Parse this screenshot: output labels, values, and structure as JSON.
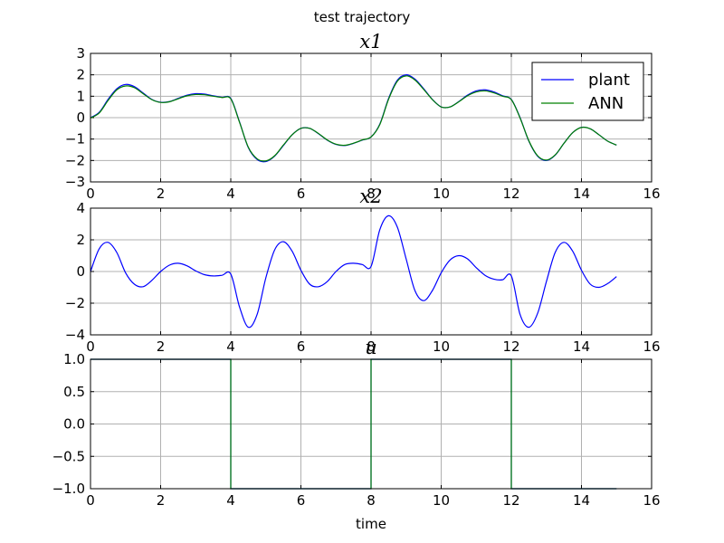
{
  "figure_title": "test trajectory",
  "colors": {
    "plant": "#0000ff",
    "ann": "#008000",
    "grid": "#b0b0b0"
  },
  "chart_data": [
    {
      "type": "line",
      "title": "x1",
      "xlabel": "",
      "ylabel": "",
      "xlim": [
        0,
        16
      ],
      "ylim": [
        -3,
        3
      ],
      "xticks": [
        "0",
        "2",
        "4",
        "6",
        "8",
        "10",
        "12",
        "14",
        "16"
      ],
      "yticks": [
        "−3",
        "−2",
        "−1",
        "0",
        "1",
        "2",
        "3"
      ],
      "grid": true,
      "legend": "top-right",
      "series": [
        {
          "name": "plant",
          "x": [
            0,
            0.25,
            0.5,
            0.75,
            1.0,
            1.25,
            1.5,
            1.75,
            2.0,
            2.25,
            2.5,
            2.75,
            3.0,
            3.25,
            3.5,
            3.75,
            4.0,
            4.25,
            4.5,
            4.75,
            5.0,
            5.25,
            5.5,
            5.75,
            6.0,
            6.25,
            6.5,
            6.75,
            7.0,
            7.25,
            7.5,
            7.75,
            8.0,
            8.25,
            8.5,
            8.75,
            9.0,
            9.25,
            9.5,
            9.75,
            10.0,
            10.25,
            10.5,
            10.75,
            11.0,
            11.25,
            11.5,
            11.75,
            12.0,
            12.25,
            12.5,
            12.75,
            13.0,
            13.25,
            13.5,
            13.75,
            14.0,
            14.25,
            14.5,
            14.75,
            15.0
          ],
          "y": [
            0.0,
            0.25,
            0.85,
            1.35,
            1.55,
            1.45,
            1.15,
            0.85,
            0.72,
            0.75,
            0.9,
            1.05,
            1.12,
            1.1,
            1.02,
            0.95,
            0.9,
            -0.2,
            -1.4,
            -1.95,
            -2.05,
            -1.8,
            -1.3,
            -0.8,
            -0.5,
            -0.5,
            -0.75,
            -1.05,
            -1.25,
            -1.3,
            -1.2,
            -1.05,
            -0.9,
            -0.3,
            0.9,
            1.75,
            2.0,
            1.8,
            1.35,
            0.85,
            0.5,
            0.5,
            0.75,
            1.05,
            1.25,
            1.3,
            1.2,
            1.02,
            0.85,
            0.0,
            -1.1,
            -1.8,
            -2.0,
            -1.75,
            -1.2,
            -0.7,
            -0.45,
            -0.52,
            -0.8,
            -1.1,
            -1.28
          ]
        },
        {
          "name": "ANN",
          "x": [
            0,
            0.25,
            0.5,
            0.75,
            1.0,
            1.25,
            1.5,
            1.75,
            2.0,
            2.25,
            2.5,
            2.75,
            3.0,
            3.25,
            3.5,
            3.75,
            4.0,
            4.25,
            4.5,
            4.75,
            5.0,
            5.25,
            5.5,
            5.75,
            6.0,
            6.25,
            6.5,
            6.75,
            7.0,
            7.25,
            7.5,
            7.75,
            8.0,
            8.25,
            8.5,
            8.75,
            9.0,
            9.25,
            9.5,
            9.75,
            10.0,
            10.25,
            10.5,
            10.75,
            11.0,
            11.25,
            11.5,
            11.75,
            12.0,
            12.25,
            12.5,
            12.75,
            13.0,
            13.25,
            13.5,
            13.75,
            14.0,
            14.25,
            14.5,
            14.75,
            15.0
          ],
          "y": [
            -0.02,
            0.22,
            0.8,
            1.3,
            1.48,
            1.4,
            1.12,
            0.84,
            0.71,
            0.74,
            0.88,
            1.02,
            1.08,
            1.07,
            1.0,
            0.94,
            0.88,
            -0.22,
            -1.38,
            -1.92,
            -2.02,
            -1.78,
            -1.28,
            -0.8,
            -0.5,
            -0.5,
            -0.74,
            -1.04,
            -1.24,
            -1.29,
            -1.19,
            -1.04,
            -0.9,
            -0.32,
            0.86,
            1.7,
            1.95,
            1.76,
            1.32,
            0.84,
            0.5,
            0.5,
            0.74,
            1.02,
            1.2,
            1.25,
            1.16,
            1.0,
            0.84,
            -0.02,
            -1.08,
            -1.78,
            -1.98,
            -1.74,
            -1.2,
            -0.7,
            -0.46,
            -0.52,
            -0.8,
            -1.1,
            -1.28
          ]
        }
      ]
    },
    {
      "type": "line",
      "title": "x2",
      "xlabel": "",
      "ylabel": "",
      "xlim": [
        0,
        16
      ],
      "ylim": [
        -5,
        5
      ],
      "xticks": [
        "0",
        "2",
        "4",
        "6",
        "8",
        "10",
        "12",
        "14",
        "16"
      ],
      "yticks": [
        "−4",
        "−2",
        "0",
        "2",
        "4"
      ],
      "grid": true,
      "series": [
        {
          "name": "plant",
          "x": [
            0,
            0.25,
            0.5,
            0.75,
            1.0,
            1.25,
            1.5,
            1.75,
            2.0,
            2.25,
            2.5,
            2.75,
            3.0,
            3.25,
            3.5,
            3.75,
            4.0,
            4.25,
            4.5,
            4.75,
            5.0,
            5.25,
            5.5,
            5.75,
            6.0,
            6.25,
            6.5,
            6.75,
            7.0,
            7.25,
            7.5,
            7.75,
            8.0,
            8.25,
            8.5,
            8.75,
            9.0,
            9.25,
            9.5,
            9.75,
            10.0,
            10.25,
            10.5,
            10.75,
            11.0,
            11.25,
            11.5,
            11.75,
            12.0,
            12.25,
            12.5,
            12.75,
            13.0,
            13.25,
            13.5,
            13.75,
            14.0,
            14.25,
            14.5,
            14.75,
            15.0
          ],
          "y": [
            0.0,
            1.8,
            2.3,
            1.5,
            -0.1,
            -1.0,
            -1.2,
            -0.7,
            0.0,
            0.5,
            0.65,
            0.45,
            0.05,
            -0.25,
            -0.35,
            -0.3,
            -0.2,
            -2.8,
            -4.4,
            -3.4,
            -0.5,
            1.7,
            2.35,
            1.6,
            0.1,
            -1.0,
            -1.2,
            -0.8,
            0.0,
            0.55,
            0.65,
            0.55,
            0.4,
            3.3,
            4.4,
            3.5,
            1.0,
            -1.5,
            -2.3,
            -1.5,
            -0.1,
            0.9,
            1.25,
            1.0,
            0.3,
            -0.3,
            -0.6,
            -0.65,
            -0.35,
            -3.4,
            -4.4,
            -3.3,
            -0.8,
            1.5,
            2.3,
            1.6,
            0.1,
            -1.0,
            -1.25,
            -0.95,
            -0.4
          ]
        }
      ]
    },
    {
      "type": "line",
      "title": "u",
      "xlabel": "time",
      "ylabel": "",
      "xlim": [
        0,
        16
      ],
      "ylim": [
        -1.0,
        1.0
      ],
      "xticks": [
        "0",
        "2",
        "4",
        "6",
        "8",
        "10",
        "12",
        "14",
        "16"
      ],
      "yticks": [
        "−1.0",
        "−0.5",
        "0.0",
        "0.5",
        "1.0"
      ],
      "grid": true,
      "series": [
        {
          "name": "plant",
          "x": [
            0,
            4,
            4,
            8,
            8,
            12,
            12,
            15
          ],
          "y": [
            1,
            1,
            -1,
            -1,
            1,
            1,
            -1,
            -1
          ]
        },
        {
          "name": "ANN",
          "x": [
            0,
            4,
            4,
            8,
            8,
            12,
            12,
            15
          ],
          "y": [
            1,
            1,
            -1,
            -1,
            1,
            1,
            -1,
            -1
          ]
        }
      ]
    }
  ]
}
